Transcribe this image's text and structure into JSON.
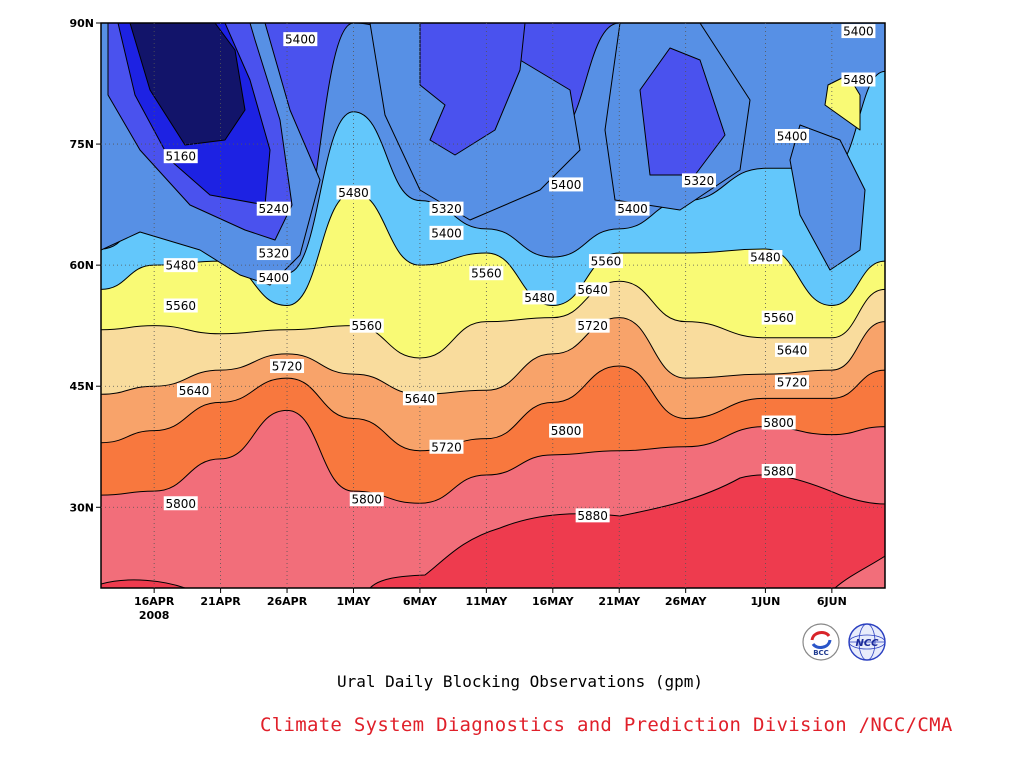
{
  "chart_data": {
    "type": "heatmap",
    "title": "Ural Daily Blocking Observations (gpm)",
    "credit": "Climate System Diagnostics and Prediction Division /NCC/CMA",
    "x_axis": {
      "ticks": [
        "16APR",
        "21APR",
        "26APR",
        "1MAY",
        "6MAY",
        "11MAY",
        "16MAY",
        "21MAY",
        "26MAY",
        "1JUN",
        "6JUN"
      ],
      "year_label": "2008",
      "range": [
        "2008-04-12",
        "2008-06-10"
      ]
    },
    "y_axis": {
      "ticks": [
        "30N",
        "45N",
        "60N",
        "75N",
        "90N"
      ],
      "tick_values": [
        30,
        45,
        60,
        75,
        90
      ],
      "range": [
        20,
        90
      ]
    },
    "levels": [
      5160,
      5240,
      5320,
      5400,
      5480,
      5560,
      5640,
      5720,
      5800,
      5880
    ],
    "fill_colors": [
      "#12146a",
      "#1d22e3",
      "#4a52ee",
      "#5790e5",
      "#63c7fb",
      "#f9fa75",
      "#f9dc9d",
      "#f8a36a",
      "#f8783e",
      "#f26e7a",
      "#ee3b4e"
    ],
    "grid": "dotted",
    "contour_labels": [
      {
        "text": "5400",
        "date": "2008-04-27",
        "lat": 88
      },
      {
        "text": "5160",
        "date": "2008-04-18",
        "lat": 73.5
      },
      {
        "text": "5240",
        "date": "2008-04-25",
        "lat": 67
      },
      {
        "text": "5320",
        "date": "2008-04-25",
        "lat": 61.5
      },
      {
        "text": "5400",
        "date": "2008-04-25",
        "lat": 58.5
      },
      {
        "text": "5480",
        "date": "2008-04-18",
        "lat": 60
      },
      {
        "text": "5560",
        "date": "2008-04-18",
        "lat": 55
      },
      {
        "text": "5640",
        "date": "2008-04-19",
        "lat": 44.5
      },
      {
        "text": "5720",
        "date": "2008-04-26",
        "lat": 47.5
      },
      {
        "text": "5800",
        "date": "2008-04-18",
        "lat": 30.5
      },
      {
        "text": "5480",
        "date": "2008-05-01",
        "lat": 69
      },
      {
        "text": "5560",
        "date": "2008-05-02",
        "lat": 52.5
      },
      {
        "text": "5320",
        "date": "2008-05-08",
        "lat": 67
      },
      {
        "text": "5400",
        "date": "2008-05-08",
        "lat": 64
      },
      {
        "text": "5640",
        "date": "2008-05-06",
        "lat": 43.5
      },
      {
        "text": "5720",
        "date": "2008-05-08",
        "lat": 37.5
      },
      {
        "text": "5800",
        "date": "2008-05-02",
        "lat": 31
      },
      {
        "text": "5560",
        "date": "2008-05-11",
        "lat": 59
      },
      {
        "text": "5480",
        "date": "2008-05-15",
        "lat": 56
      },
      {
        "text": "5400",
        "date": "2008-05-17",
        "lat": 70
      },
      {
        "text": "5800",
        "date": "2008-05-17",
        "lat": 39.5
      },
      {
        "text": "5880",
        "date": "2008-05-19",
        "lat": 29
      },
      {
        "text": "5560",
        "date": "2008-05-20",
        "lat": 60.5
      },
      {
        "text": "5640",
        "date": "2008-05-19",
        "lat": 57
      },
      {
        "text": "5720",
        "date": "2008-05-19",
        "lat": 52.5
      },
      {
        "text": "5400",
        "date": "2008-05-22",
        "lat": 67
      },
      {
        "text": "5320",
        "date": "2008-05-27",
        "lat": 70.5
      },
      {
        "text": "5480",
        "date": "2008-06-01",
        "lat": 61
      },
      {
        "text": "5400",
        "date": "2008-06-03",
        "lat": 76
      },
      {
        "text": "5400",
        "date": "2008-06-08",
        "lat": 89
      },
      {
        "text": "5480",
        "date": "2008-06-08",
        "lat": 83
      },
      {
        "text": "5560",
        "date": "2008-06-02",
        "lat": 53.5
      },
      {
        "text": "5640",
        "date": "2008-06-03",
        "lat": 49.5
      },
      {
        "text": "5720",
        "date": "2008-06-03",
        "lat": 45.5
      },
      {
        "text": "5800",
        "date": "2008-06-02",
        "lat": 40.5
      },
      {
        "text": "5880",
        "date": "2008-06-02",
        "lat": 34.5
      }
    ]
  },
  "logos": [
    {
      "name": "bcc-logo",
      "text": "BCC"
    },
    {
      "name": "ncc-logo",
      "text": "NCC"
    }
  ]
}
